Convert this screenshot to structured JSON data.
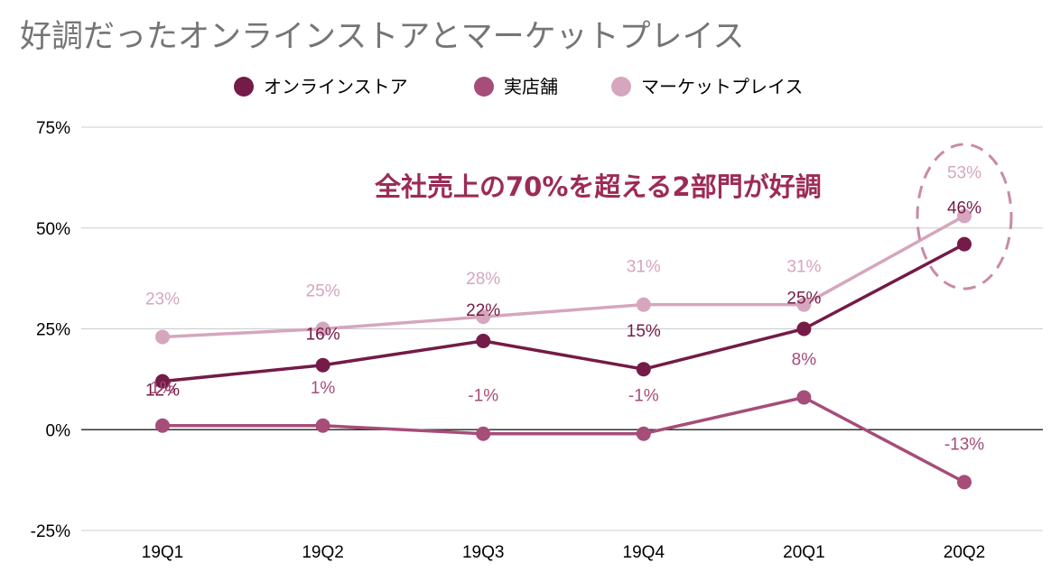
{
  "chart_data": {
    "type": "line",
    "title": "好調だったオンラインストアとマーケットプレイス",
    "categories": [
      "19Q1",
      "19Q2",
      "19Q3",
      "19Q4",
      "20Q1",
      "20Q2"
    ],
    "series": [
      {
        "name": "オンラインストア",
        "color": "#741b47",
        "values": [
          12,
          16,
          22,
          15,
          25,
          46
        ],
        "labels": [
          "12%",
          "16%",
          "22%",
          "15%",
          "25%",
          "46%"
        ]
      },
      {
        "name": "実店舗",
        "color": "#a64d79",
        "values": [
          1,
          1,
          -1,
          -1,
          8,
          -13
        ],
        "labels": [
          "1%",
          "1%",
          "-1%",
          "-1%",
          "8%",
          "-13%"
        ]
      },
      {
        "name": "マーケットプレイス",
        "color": "#d5a6bd",
        "values": [
          23,
          25,
          28,
          31,
          31,
          53
        ],
        "labels": [
          "23%",
          "25%",
          "28%",
          "31%",
          "31%",
          "53%"
        ]
      }
    ],
    "ylim": [
      -25,
      75
    ],
    "yticks": [
      75,
      50,
      25,
      0,
      -25
    ],
    "ytick_labels": [
      "75%",
      "50%",
      "25%",
      "0%",
      "-25%"
    ],
    "grid": true,
    "legend_position": "top",
    "annotation": "全社売上の70%を超える2部門が好調",
    "highlight": "20Q2"
  }
}
